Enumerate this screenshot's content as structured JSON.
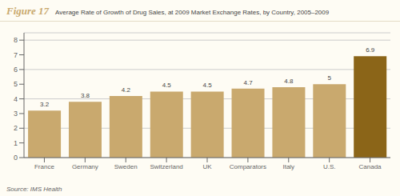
{
  "chart_data": {
    "type": "bar",
    "title": "Figure 17",
    "subtitle": "Average Rate of Growth of Drug Sales, at 2009 Market Exchange Rates, by Country, 2005–2009",
    "annotations": [
      "Source: IMS Health"
    ],
    "categories": [
      "France",
      "Germany",
      "Sweden",
      "Switzerland",
      "UK",
      "Comparators",
      "Italy",
      "U.S.",
      "Canada"
    ],
    "values": [
      3.2,
      3.8,
      4.2,
      4.5,
      4.5,
      4.7,
      4.8,
      5.0,
      6.9
    ],
    "colors": [
      "#C9A96E",
      "#C9A96E",
      "#C9A96E",
      "#C9A96E",
      "#C9A96E",
      "#C9A96E",
      "#C9A96E",
      "#C9A96E",
      "#8B6518"
    ],
    "ylim": [
      0,
      8.5
    ],
    "yticks": [
      0,
      1,
      2,
      3,
      4,
      5,
      6,
      7,
      8
    ],
    "grid": true,
    "data_labels": true
  }
}
